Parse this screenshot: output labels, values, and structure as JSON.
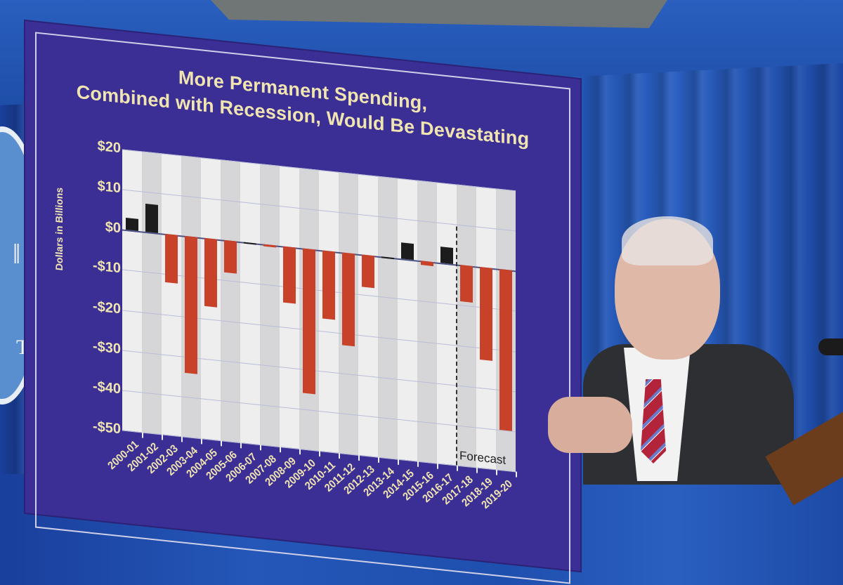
{
  "scene": {
    "description": "Presenter pointing at a budget bar chart poster in front of a blue curtain",
    "seal_letter": "T",
    "colors": {
      "curtain": "#2457b8",
      "poster_bg": "#3b2f95",
      "title_text": "#f0e5b0",
      "bar_positive": "#1c1c1c",
      "bar_negative": "#c8422a",
      "plot_bg": "#eeeeef",
      "plot_stripe": "#d6d6d8"
    }
  },
  "poster": {
    "title_line1": "More Permanent Spending,",
    "title_line2": "Combined with Recession, Would Be Devastating",
    "ylabel": "Dollars in Billions",
    "yticks": [
      "$20",
      "$10",
      "$0",
      "-$10",
      "-$20",
      "-$30",
      "-$40",
      "-$50"
    ],
    "forecast_label": "Forecast"
  },
  "chart_data": {
    "type": "bar",
    "title": "More Permanent Spending, Combined with Recession, Would Be Devastating",
    "xlabel": "",
    "ylabel": "Dollars in Billions",
    "ylim": [
      -50,
      20
    ],
    "yticks": [
      20,
      10,
      0,
      -10,
      -20,
      -30,
      -40,
      -50
    ],
    "grid": true,
    "categories": [
      "2000-01",
      "2001-02",
      "2002-03",
      "2003-04",
      "2004-05",
      "2005-06",
      "2006-07",
      "2007-08",
      "2008-09",
      "2009-10",
      "2010-11",
      "2011-12",
      "2012-13",
      "2013-14",
      "2014-15",
      "2015-16",
      "2016-17",
      "2017-18",
      "2018-19",
      "2019-20"
    ],
    "values": [
      3,
      7,
      -12,
      -34,
      -17,
      -8,
      0,
      -0.5,
      -14,
      -36,
      -17,
      -23,
      -8,
      0,
      4,
      -1,
      4,
      -9,
      -23,
      -40
    ],
    "annotations": [
      {
        "text": "Forecast",
        "divider_between": [
          "2016-17",
          "2017-18"
        ],
        "style": "dashed vertical line"
      }
    ],
    "legend": null
  }
}
